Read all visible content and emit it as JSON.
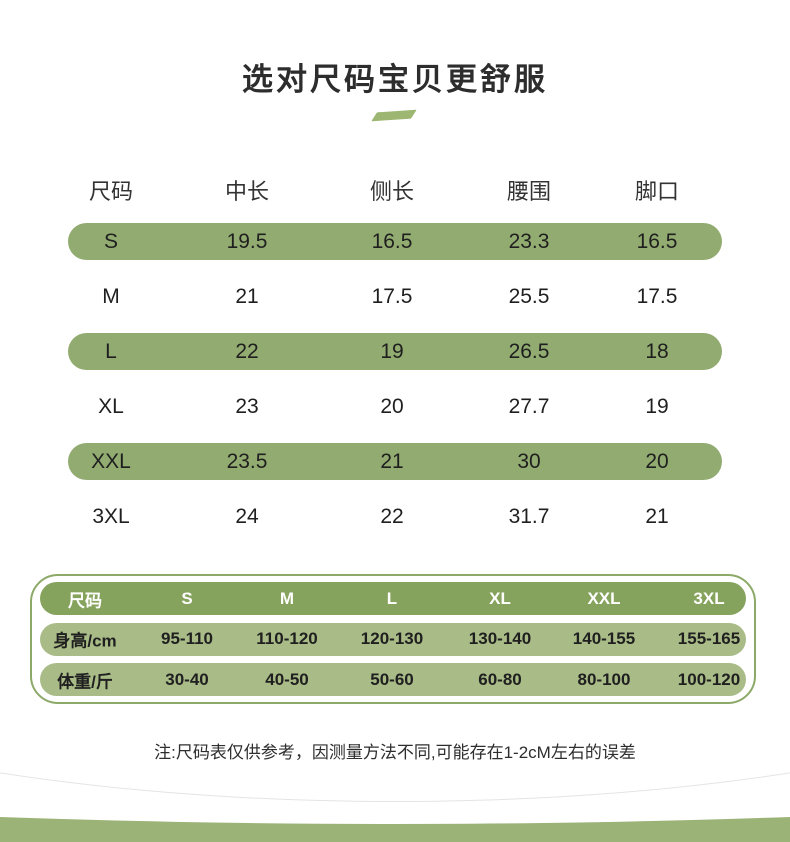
{
  "title": "选对尺码宝贝更舒服",
  "note": "注:尺码表仅供参考，因测量方法不同,可能存在1-2cM左右的误差",
  "colors": {
    "row_highlight_green": "#92ab70",
    "fit_header_green": "#86a35d",
    "fit_row_green": "#a9bc87",
    "fit_border_green": "#8ca968",
    "bottom_band_green": "#9cb377",
    "accent_dash_green": "#9db773"
  },
  "chart_data": [
    {
      "type": "table",
      "columns": [
        "尺码",
        "中长",
        "侧长",
        "腰围",
        "脚口"
      ],
      "rows": [
        [
          "S",
          "19.5",
          "16.5",
          "23.3",
          "16.5"
        ],
        [
          "M",
          "21",
          "17.5",
          "25.5",
          "17.5"
        ],
        [
          "L",
          "22",
          "19",
          "26.5",
          "18"
        ],
        [
          "XL",
          "23",
          "20",
          "27.7",
          "19"
        ],
        [
          "XXL",
          "23.5",
          "21",
          "30",
          "20"
        ],
        [
          "3XL",
          "24",
          "22",
          "31.7",
          "21"
        ]
      ]
    },
    {
      "type": "table",
      "rows": [
        [
          "尺码",
          "S",
          "M",
          "L",
          "XL",
          "XXL",
          "3XL"
        ],
        [
          "身高/cm",
          "95-110",
          "110-120",
          "120-130",
          "130-140",
          "140-155",
          "155-165"
        ],
        [
          "体重/斤",
          "30-40",
          "40-50",
          "50-60",
          "60-80",
          "80-100",
          "100-120"
        ]
      ]
    }
  ]
}
